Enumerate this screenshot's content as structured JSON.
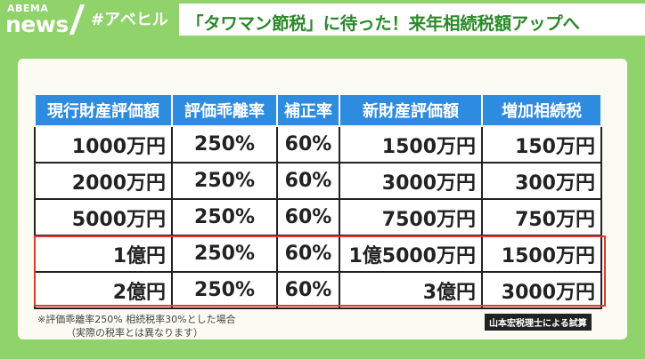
{
  "header": {
    "logo_top": "ABEMA",
    "logo_main": "news",
    "hashtag": "#アベヒル",
    "headline": "「タワマン節税」に待った！来年相続税額アップへ"
  },
  "table": {
    "headers": [
      "現行財産評価額",
      "評価乖離率",
      "補正率",
      "新財産評価額",
      "増加相続税"
    ],
    "rows": [
      [
        "1000万円",
        "250%",
        "60%",
        "1500万円",
        "150万円"
      ],
      [
        "2000万円",
        "250%",
        "60%",
        "3000万円",
        "300万円"
      ],
      [
        "5000万円",
        "250%",
        "60%",
        "7500万円",
        "750万円"
      ],
      [
        "1億円",
        "250%",
        "60%",
        "1億5000万円",
        "1500万円"
      ],
      [
        "2億円",
        "250%",
        "60%",
        "3億円",
        "3000万円"
      ]
    ]
  },
  "notes": {
    "line1": "※評価乖離率250%  相続税率30%とした場合",
    "line2": "（実際の税率とは異なります）",
    "credit": "山本宏税理士による試算"
  },
  "colors": {
    "brand_green": "#8fd36a",
    "header_blue": "#2d8be0",
    "highlight_red": "#e0392b"
  }
}
